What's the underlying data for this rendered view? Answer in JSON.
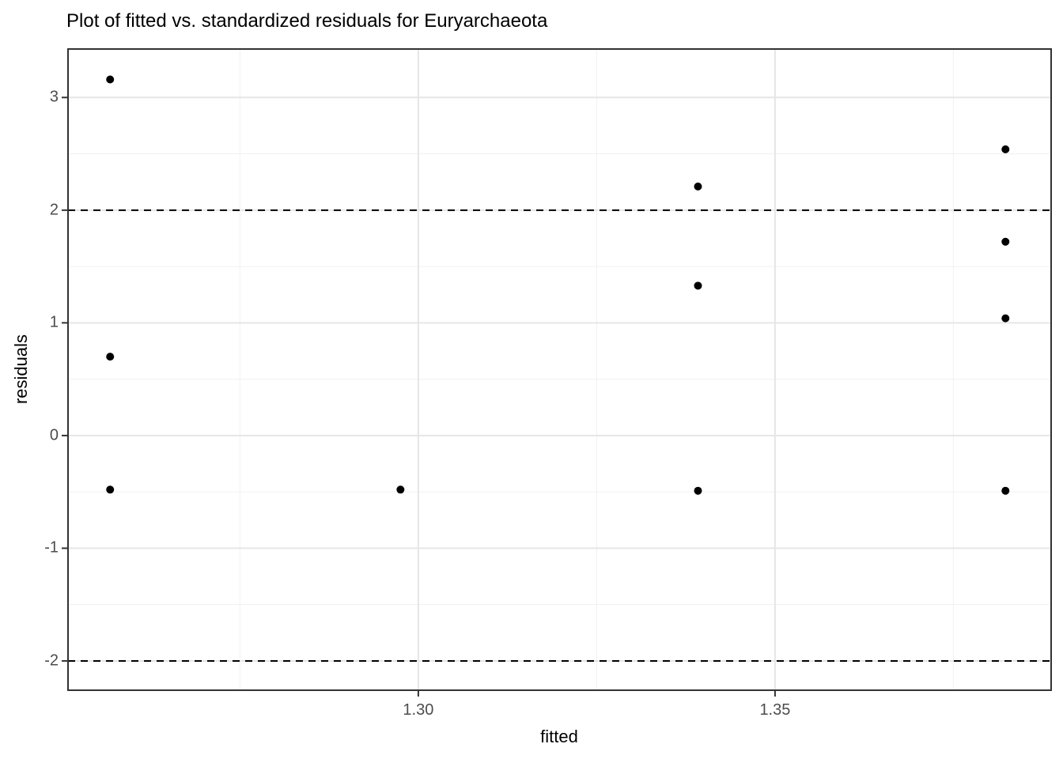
{
  "title": "Plot of fitted vs. standardized residuals for Euryarchaeota",
  "chart_data": {
    "type": "scatter",
    "title": "Plot of fitted vs. standardized residuals for Euryarchaeota",
    "xlabel": "fitted",
    "ylabel": "residuals",
    "xlim": [
      1.2509,
      1.3887
    ],
    "ylim": [
      -2.26,
      3.43
    ],
    "grid": true,
    "legend": false,
    "x_ticks": [
      {
        "value": 1.3,
        "label": "1.30"
      },
      {
        "value": 1.35,
        "label": "1.35"
      }
    ],
    "x_minor_grid": [
      1.275,
      1.325,
      1.375
    ],
    "y_ticks": [
      {
        "value": -2,
        "label": "-2"
      },
      {
        "value": -1,
        "label": "-1"
      },
      {
        "value": 0,
        "label": "0"
      },
      {
        "value": 1,
        "label": "1"
      },
      {
        "value": 2,
        "label": "2"
      },
      {
        "value": 3,
        "label": "3"
      }
    ],
    "y_minor_grid": [
      -1.5,
      -0.5,
      0.5,
      1.5,
      2.5
    ],
    "reference_lines": [
      {
        "y": 2,
        "style": "dashed"
      },
      {
        "y": -2,
        "style": "dashed"
      }
    ],
    "points": [
      {
        "fitted": 1.2568,
        "residual": 3.16
      },
      {
        "fitted": 1.2568,
        "residual": 0.7
      },
      {
        "fitted": 1.2568,
        "residual": -0.48
      },
      {
        "fitted": 1.2975,
        "residual": -0.48
      },
      {
        "fitted": 1.3392,
        "residual": 2.21
      },
      {
        "fitted": 1.3392,
        "residual": 1.33
      },
      {
        "fitted": 1.3392,
        "residual": -0.49
      },
      {
        "fitted": 1.3823,
        "residual": 2.54
      },
      {
        "fitted": 1.3823,
        "residual": 1.72
      },
      {
        "fitted": 1.3823,
        "residual": 1.04
      },
      {
        "fitted": 1.3823,
        "residual": -0.49
      }
    ]
  },
  "colors": {
    "background": "#ffffff",
    "point": "#000000",
    "panel_border": "#333333",
    "axis_tick": "#333333",
    "grid_major": "#e6e6e6",
    "grid_minor": "#f0f0f0",
    "reference_line": "#000000",
    "tick_label": "#4d4d4d",
    "text": "#000000"
  }
}
